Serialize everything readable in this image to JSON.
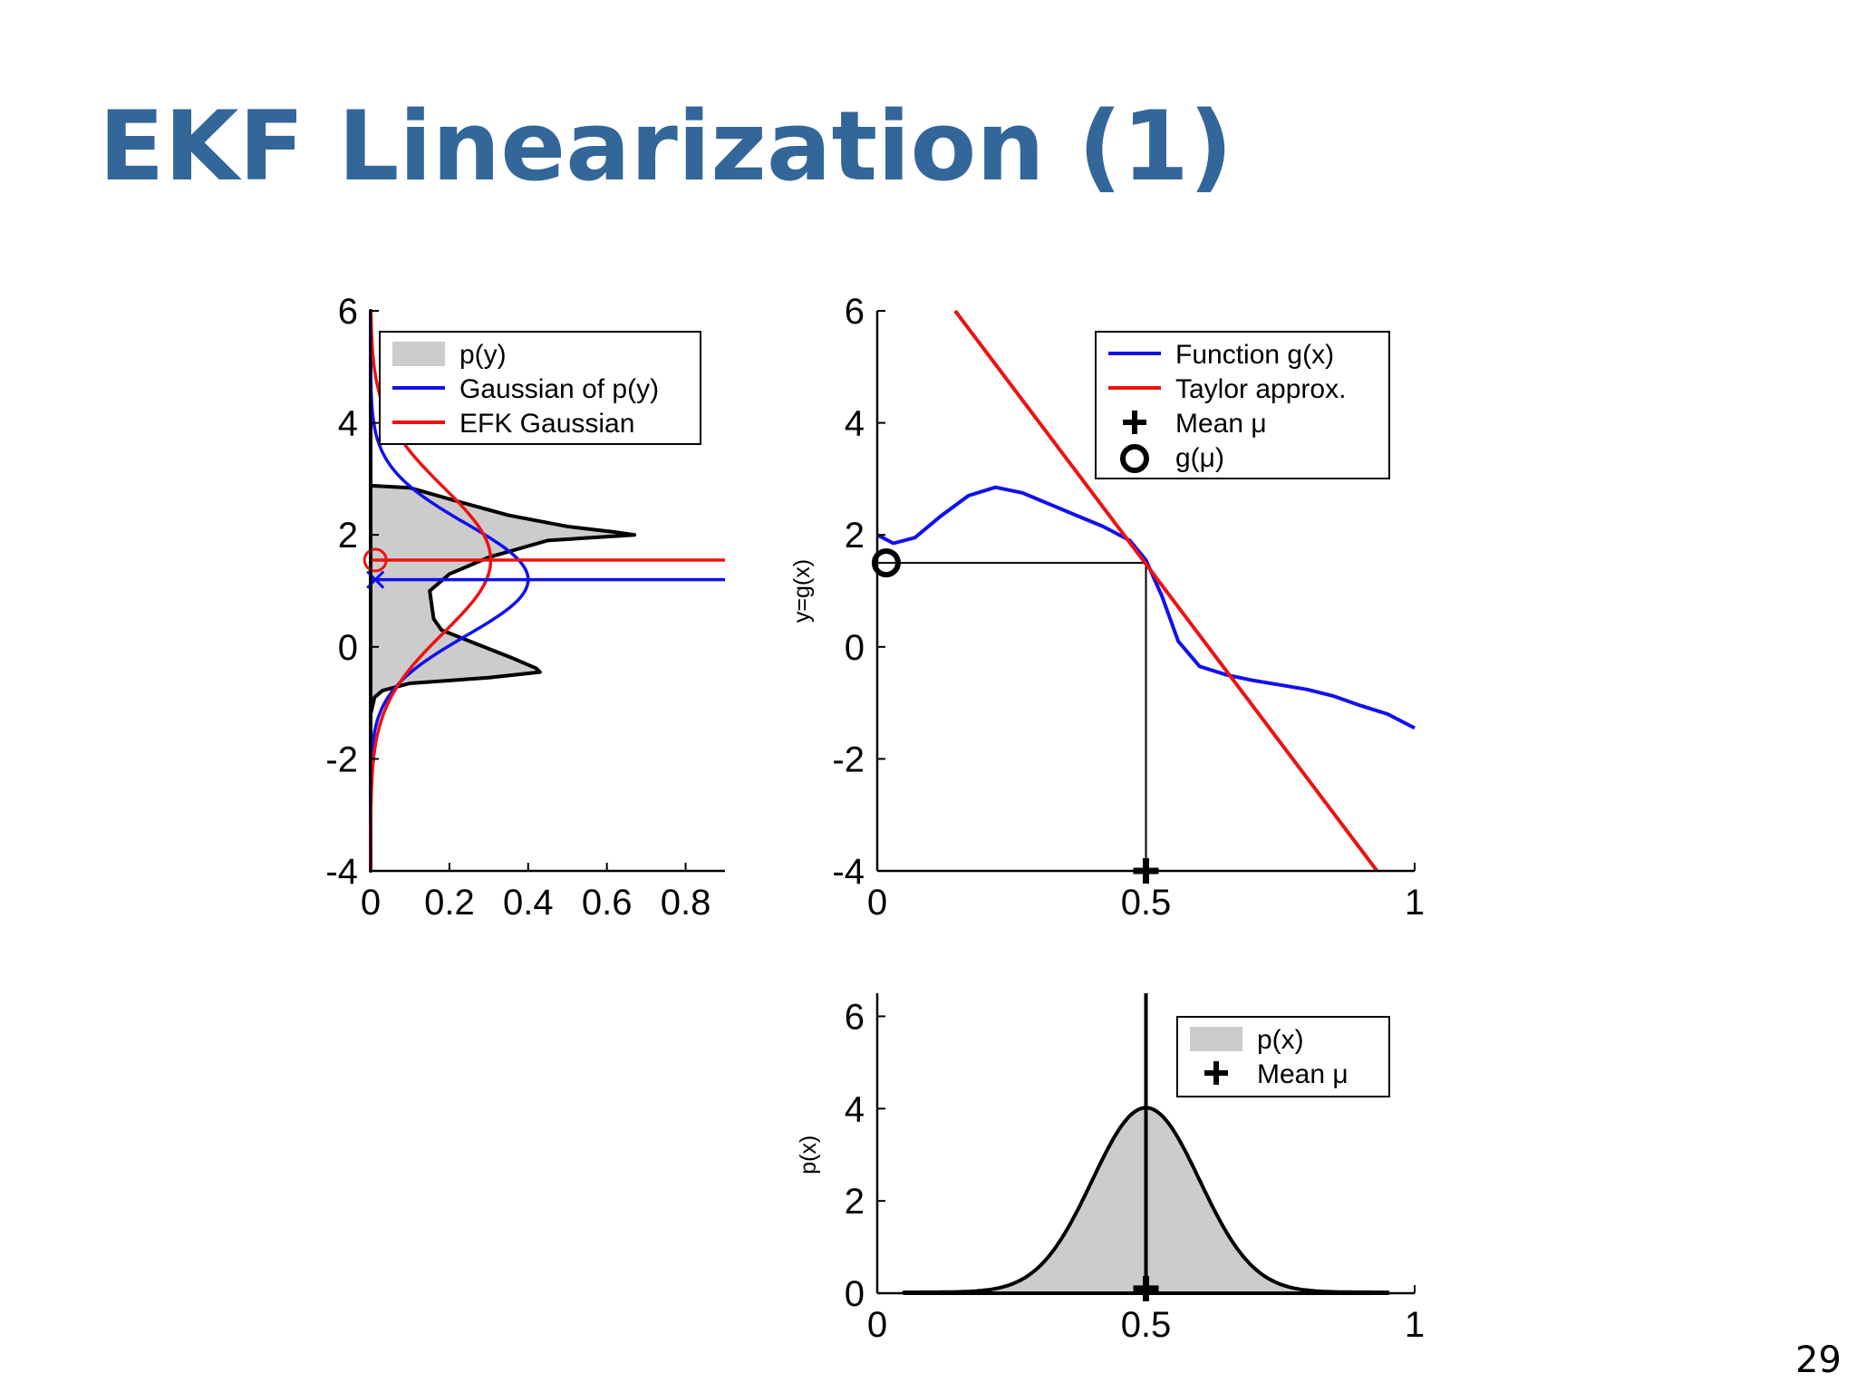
{
  "slide": {
    "title": "EKF Linearization (1)",
    "page_number": "29"
  },
  "chart_data": [
    {
      "id": "output",
      "type": "area",
      "orientation": "horizontal",
      "xlim": [
        0,
        0.9
      ],
      "ylim": [
        -4,
        6
      ],
      "xticks": [
        0,
        0.2,
        0.4,
        0.6,
        0.8
      ],
      "xtick_labels": [
        "0",
        "0.2",
        "0.4",
        "0.6",
        "0.8"
      ],
      "yticks": [
        -4,
        -2,
        0,
        2,
        4,
        6
      ],
      "ytick_labels": [
        "-4",
        "-2",
        "0",
        "2",
        "4",
        "6"
      ],
      "legend": {
        "position": "top-right",
        "entries": [
          "p(y)",
          "Gaussian of p(y)",
          "EFK Gaussian"
        ]
      },
      "series": [
        {
          "name": "p(y)",
          "kind": "area",
          "fill": "#cccccc",
          "edge": "#000000",
          "y": [
            6,
            2.88,
            2.84,
            2.6,
            2.35,
            2.15,
            2.05,
            2.0,
            1.9,
            1.6,
            1.3,
            1.0,
            0.5,
            0.3,
            0.05,
            -0.2,
            -0.38,
            -0.45,
            -0.55,
            -0.65,
            -0.78,
            -0.9,
            -1.2,
            -1.5,
            -1.8,
            -4
          ],
          "density": [
            0,
            0,
            0.1,
            0.22,
            0.35,
            0.5,
            0.62,
            0.67,
            0.45,
            0.3,
            0.2,
            0.15,
            0.16,
            0.18,
            0.27,
            0.36,
            0.42,
            0.43,
            0.3,
            0.1,
            0.03,
            0.01,
            0.0,
            0.0,
            0.0,
            0
          ]
        },
        {
          "name": "Gaussian of p(y)",
          "kind": "line",
          "color": "#1010ee",
          "mean": 1.2,
          "sigma": 1.0,
          "peak": 0.4,
          "mean_marker": "x"
        },
        {
          "name": "EFK Gaussian",
          "kind": "line",
          "color": "#ee1111",
          "mean": 1.55,
          "sigma": 1.3,
          "peak": 0.305,
          "mean_marker": "o"
        }
      ]
    },
    {
      "id": "function",
      "type": "line",
      "xlim": [
        0,
        1
      ],
      "ylim": [
        -4,
        6
      ],
      "ylabel": "y=g(x)",
      "xticks": [
        0,
        0.5,
        1
      ],
      "xtick_labels": [
        "0",
        "0.5",
        "1"
      ],
      "yticks": [
        -4,
        -2,
        0,
        2,
        4,
        6
      ],
      "ytick_labels": [
        "-4",
        "-2",
        "0",
        "2",
        "4",
        "6"
      ],
      "legend": {
        "position": "top-right",
        "entries": [
          "Function g(x)",
          "Taylor approx.",
          "Mean μ",
          "g(μ)"
        ]
      },
      "series": [
        {
          "name": "Function g(x)",
          "color": "#1010ee",
          "x": [
            0,
            0.03,
            0.07,
            0.12,
            0.17,
            0.22,
            0.27,
            0.32,
            0.37,
            0.42,
            0.47,
            0.5,
            0.53,
            0.56,
            0.6,
            0.65,
            0.7,
            0.75,
            0.8,
            0.85,
            0.9,
            0.95,
            1.0
          ],
          "y": [
            2.0,
            1.85,
            1.95,
            2.35,
            2.7,
            2.85,
            2.75,
            2.55,
            2.35,
            2.15,
            1.9,
            1.55,
            0.9,
            0.1,
            -0.35,
            -0.5,
            -0.6,
            -0.68,
            -0.76,
            -0.88,
            -1.05,
            -1.2,
            -1.45
          ]
        },
        {
          "name": "Taylor approx.",
          "color": "#ee1111",
          "x": [
            0.145,
            0.93
          ],
          "y": [
            6.0,
            -4.0
          ]
        }
      ],
      "markers": [
        {
          "name": "Mean μ",
          "symbol": "plus",
          "x": 0.5,
          "y": -4
        },
        {
          "name": "g(μ)",
          "symbol": "circle",
          "x": 0.01,
          "y": 1.5
        }
      ],
      "guides": {
        "x": 0.5,
        "y": 1.5
      }
    },
    {
      "id": "input",
      "type": "area",
      "xlim": [
        0,
        1
      ],
      "ylim": [
        0,
        6.5
      ],
      "ylabel": "p(x)",
      "xticks": [
        0,
        0.5,
        1
      ],
      "xtick_labels": [
        "0",
        "0.5",
        "1"
      ],
      "yticks": [
        0,
        2,
        4,
        6
      ],
      "ytick_labels": [
        "0",
        "2",
        "4",
        "6"
      ],
      "legend": {
        "position": "top-right",
        "entries": [
          "p(x)",
          "Mean μ"
        ]
      },
      "series": [
        {
          "name": "p(x)",
          "kind": "area",
          "fill": "#cccccc",
          "edge": "#000000",
          "mean": 0.5,
          "sigma": 0.1,
          "peak": 4.0,
          "x_min": 0.05,
          "x_max": 0.95
        }
      ],
      "markers": [
        {
          "name": "Mean μ",
          "symbol": "plus",
          "x": 0.5,
          "y": 0.1
        }
      ],
      "mean_line": 0.5
    }
  ]
}
